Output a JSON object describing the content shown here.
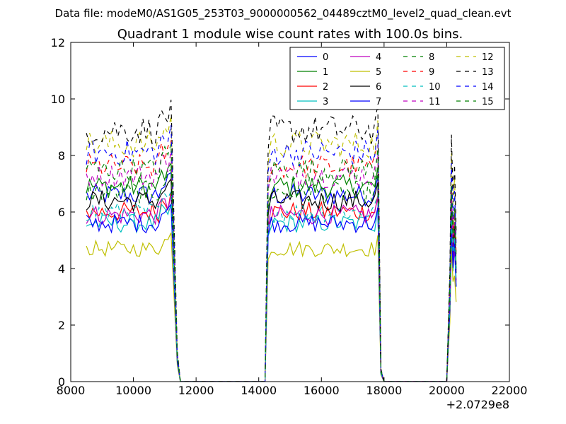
{
  "chart_data": {
    "type": "line",
    "suptitle": "Data file: modeM0/AS1G05_253T03_9000000562_04489cztM0_level2_quad_clean.evt",
    "title": "Quadrant 1 module wise count rates with 100.0s bins.",
    "xlabel": "",
    "ylabel": "",
    "x_offset_label": "+2.0729e8",
    "xlim": [
      8000,
      22000
    ],
    "ylim": [
      0,
      12
    ],
    "x_ticks": [
      "8000",
      "10000",
      "12000",
      "14000",
      "16000",
      "18000",
      "20000",
      "22000"
    ],
    "y_ticks": [
      "0",
      "2",
      "4",
      "6",
      "8",
      "10",
      "12"
    ],
    "grid": false,
    "legend_position": "top-right",
    "segments": [
      {
        "start": 8500,
        "end": 11200,
        "fall_end": 11500
      },
      {
        "rise_start": 14200,
        "start": 14300,
        "end": 17800,
        "fall_end": 18000
      },
      {
        "rise_start": 20000,
        "start": 20150,
        "end": 20300,
        "fall_end": 20300
      }
    ],
    "series": [
      {
        "name": "0",
        "color": "#0000ff",
        "dash": "solid",
        "level": 6.6
      },
      {
        "name": "1",
        "color": "#008000",
        "dash": "solid",
        "level": 6.9
      },
      {
        "name": "2",
        "color": "#ff0000",
        "dash": "solid",
        "level": 6.0
      },
      {
        "name": "3",
        "color": "#00bfbf",
        "dash": "solid",
        "level": 5.6
      },
      {
        "name": "4",
        "color": "#bf00bf",
        "dash": "solid",
        "level": 5.9
      },
      {
        "name": "5",
        "color": "#bfbf00",
        "dash": "solid",
        "level": 4.7
      },
      {
        "name": "6",
        "color": "#000000",
        "dash": "solid",
        "level": 6.4
      },
      {
        "name": "7",
        "color": "#0000ff",
        "dash": "solid",
        "level": 5.6
      },
      {
        "name": "8",
        "color": "#008000",
        "dash": "dashed",
        "level": 6.7
      },
      {
        "name": "9",
        "color": "#ff0000",
        "dash": "dashed",
        "level": 7.6
      },
      {
        "name": "10",
        "color": "#00bfbf",
        "dash": "dashed",
        "level": 6.0
      },
      {
        "name": "11",
        "color": "#bf00bf",
        "dash": "dashed",
        "level": 7.3
      },
      {
        "name": "12",
        "color": "#bfbf00",
        "dash": "dashed",
        "level": 8.4
      },
      {
        "name": "13",
        "color": "#000000",
        "dash": "dashed",
        "level": 8.9
      },
      {
        "name": "14",
        "color": "#0000ff",
        "dash": "dashed",
        "level": 8.1
      },
      {
        "name": "15",
        "color": "#008000",
        "dash": "dashed",
        "level": 7.5
      }
    ]
  }
}
